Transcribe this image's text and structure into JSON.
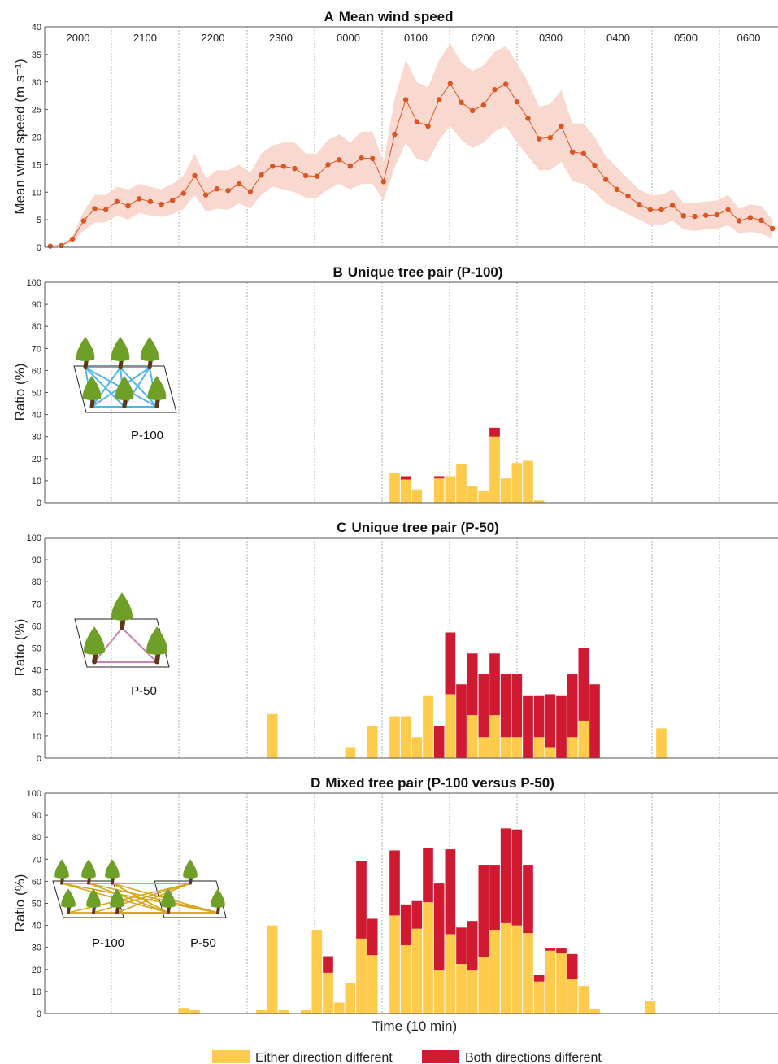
{
  "colors": {
    "either": "#fecb4d",
    "both": "#cf1a32",
    "line": "#d95523",
    "band": "#f9d9cf",
    "axis": "#555555",
    "grid": "#999999",
    "blue": "#54b6e6",
    "pink": "#cf80b8",
    "gold": "#d4a71f",
    "foliage": "#6e9f26",
    "trunk": "#5e3717"
  },
  "hours": [
    "2000",
    "2100",
    "2200",
    "2300",
    "0000",
    "0100",
    "0200",
    "0300",
    "0400",
    "0500",
    "0600"
  ],
  "xlabel": "Time (10 min)",
  "legend": {
    "either": "Either direction different",
    "both": "Both directions different"
  },
  "chart_data": [
    {
      "type": "line",
      "letter": "A",
      "title": "Mean wind speed",
      "ylabel": "Mean wind speed (m s⁻¹)",
      "ylim": [
        0,
        40
      ],
      "yticks": [
        0,
        5,
        10,
        15,
        20,
        25,
        30,
        35,
        40
      ],
      "x": [
        0,
        1,
        2,
        3,
        4,
        5,
        6,
        7,
        8,
        9,
        10,
        11,
        12,
        13,
        14,
        15,
        16,
        17,
        18,
        19,
        20,
        21,
        22,
        23,
        24,
        25,
        26,
        27,
        28,
        29,
        30,
        31,
        32,
        33,
        34,
        35,
        36,
        37,
        38,
        39,
        40,
        41,
        42,
        43,
        44,
        45,
        46,
        47,
        48,
        49,
        50,
        51,
        52,
        53,
        54,
        55,
        56,
        57,
        58,
        59,
        60,
        61,
        62,
        63,
        64,
        65
      ],
      "values": [
        0.2,
        0.3,
        1.5,
        4.8,
        7.0,
        6.8,
        8.3,
        7.5,
        8.8,
        8.3,
        7.8,
        8.5,
        9.8,
        13.0,
        9.5,
        10.6,
        10.3,
        11.5,
        10.1,
        13.1,
        14.7,
        14.7,
        14.3,
        13.0,
        12.9,
        15.0,
        15.9,
        14.7,
        16.2,
        16.1,
        11.9,
        20.5,
        26.8,
        22.8,
        22.0,
        26.8,
        29.7,
        26.3,
        24.8,
        25.8,
        28.6,
        29.6,
        26.4,
        23.4,
        19.7,
        19.9,
        22.0,
        17.3,
        17.0,
        14.9,
        12.3,
        10.5,
        9.3,
        7.8,
        6.8,
        6.8,
        7.6,
        5.7,
        5.6,
        5.8,
        5.9,
        6.8,
        4.8,
        5.4,
        4.9,
        3.4
      ],
      "lower": [
        0.1,
        0.2,
        1.0,
        3.0,
        4.5,
        4.5,
        5.8,
        5.0,
        6.2,
        5.8,
        5.5,
        6.0,
        7.0,
        9.5,
        6.5,
        7.0,
        6.8,
        8.0,
        7.0,
        9.5,
        11.0,
        10.5,
        10.0,
        9.0,
        9.0,
        10.5,
        11.5,
        10.5,
        11.5,
        11.5,
        8.5,
        14.5,
        19.0,
        16.0,
        15.5,
        19.5,
        22.0,
        19.5,
        18.0,
        19.0,
        21.0,
        22.0,
        19.0,
        16.5,
        14.0,
        14.0,
        15.5,
        12.0,
        11.5,
        10.0,
        8.0,
        7.0,
        6.0,
        5.0,
        4.0,
        4.0,
        4.8,
        3.2,
        3.0,
        3.2,
        3.3,
        4.0,
        2.5,
        2.8,
        2.5,
        1.6
      ],
      "upper": [
        0.3,
        0.5,
        2.0,
        6.5,
        9.5,
        9.5,
        11.0,
        10.5,
        11.5,
        11.0,
        10.5,
        11.5,
        13.0,
        17.0,
        12.5,
        14.0,
        14.0,
        15.0,
        13.5,
        17.0,
        18.5,
        19.0,
        19.0,
        17.0,
        17.0,
        19.5,
        20.5,
        19.0,
        21.0,
        21.0,
        15.5,
        27.0,
        34.0,
        30.0,
        29.0,
        34.0,
        37.0,
        33.5,
        32.0,
        33.0,
        35.5,
        36.5,
        33.5,
        30.0,
        25.5,
        26.0,
        28.5,
        22.5,
        22.5,
        20.0,
        16.5,
        14.5,
        12.5,
        10.5,
        9.5,
        9.5,
        10.5,
        8.0,
        8.0,
        8.3,
        8.5,
        9.5,
        7.0,
        7.8,
        7.5,
        5.0
      ]
    },
    {
      "type": "bar",
      "letter": "B",
      "title": "Unique tree pair (P-100)",
      "ylabel": "Ratio (%)",
      "ylim": [
        0,
        100
      ],
      "yticks": [
        0,
        10,
        20,
        30,
        40,
        50,
        60,
        70,
        80,
        90,
        100
      ],
      "inset_label": "P-100",
      "series": [
        {
          "key": "either",
          "name": "Either direction different",
          "x": [
            31,
            32,
            33,
            35,
            36,
            37,
            38,
            39,
            40,
            41,
            42,
            43,
            44
          ],
          "values": [
            13.5,
            10.5,
            6,
            11,
            12,
            17.5,
            7.5,
            5.5,
            30,
            11,
            18,
            19,
            1
          ]
        },
        {
          "key": "both",
          "name": "Both directions different",
          "x": [
            32,
            35,
            40
          ],
          "values": [
            1.5,
            1,
            4
          ]
        }
      ]
    },
    {
      "type": "bar",
      "letter": "C",
      "title": "Unique tree pair (P-50)",
      "ylabel": "Ratio (%)",
      "ylim": [
        0,
        100
      ],
      "yticks": [
        0,
        10,
        20,
        30,
        40,
        50,
        60,
        70,
        80,
        90,
        100
      ],
      "inset_label": "P-50",
      "series": [
        {
          "key": "either",
          "name": "Either direction different",
          "x": [
            20,
            27,
            29,
            31,
            32,
            33,
            34,
            35,
            36,
            37,
            38,
            39,
            40,
            41,
            42,
            43,
            44,
            45,
            46,
            47,
            48,
            55
          ],
          "values": [
            20,
            5,
            14.5,
            19,
            19,
            9.5,
            28.5,
            0,
            29,
            0,
            19.5,
            9.5,
            19.5,
            9.5,
            9.5,
            0,
            9.5,
            5,
            0,
            9.5,
            17,
            13.5
          ]
        },
        {
          "key": "both",
          "name": "Both directions different",
          "x": [
            35,
            36,
            37,
            38,
            39,
            40,
            41,
            42,
            43,
            44,
            45,
            46,
            47,
            48,
            49
          ],
          "values": [
            14.5,
            28,
            33.5,
            28,
            28.5,
            28,
            28.5,
            28.5,
            28.5,
            19,
            24,
            28.5,
            28.5,
            33,
            33.5
          ]
        }
      ]
    },
    {
      "type": "bar",
      "letter": "D",
      "title": "Mixed tree pair (P-100 versus P-50)",
      "ylabel": "Ratio (%)",
      "ylim": [
        0,
        100
      ],
      "yticks": [
        0,
        10,
        20,
        30,
        40,
        50,
        60,
        70,
        80,
        90,
        100
      ],
      "inset_labels": [
        "P-100",
        "P-50"
      ],
      "series": [
        {
          "key": "either",
          "name": "Either direction different",
          "x": [
            12,
            13,
            19,
            20,
            21,
            23,
            24,
            25,
            26,
            27,
            28,
            29,
            31,
            32,
            33,
            34,
            35,
            36,
            37,
            38,
            39,
            40,
            41,
            42,
            43,
            44,
            45,
            46,
            47,
            48,
            49,
            50,
            54
          ],
          "values": [
            2.5,
            1.5,
            1.5,
            40,
            1.5,
            1.5,
            38,
            18.5,
            5,
            14,
            34,
            26.5,
            44.5,
            31,
            38.5,
            50.5,
            19.5,
            36,
            22.5,
            19.5,
            25.5,
            38,
            41,
            40,
            36.5,
            14.5,
            28.5,
            27.5,
            15.5,
            12.5,
            2,
            0,
            5.5
          ]
        },
        {
          "key": "both",
          "name": "Both directions different",
          "x": [
            25,
            28,
            29,
            31,
            32,
            33,
            34,
            35,
            36,
            37,
            38,
            39,
            40,
            41,
            42,
            43,
            44,
            45,
            46,
            47
          ],
          "values": [
            7.5,
            35,
            16.5,
            29.5,
            18.5,
            12.5,
            24.5,
            39.5,
            38.5,
            16.5,
            22.5,
            42,
            29.5,
            43,
            43.5,
            31,
            3,
            1,
            2,
            11.5
          ]
        }
      ]
    }
  ]
}
